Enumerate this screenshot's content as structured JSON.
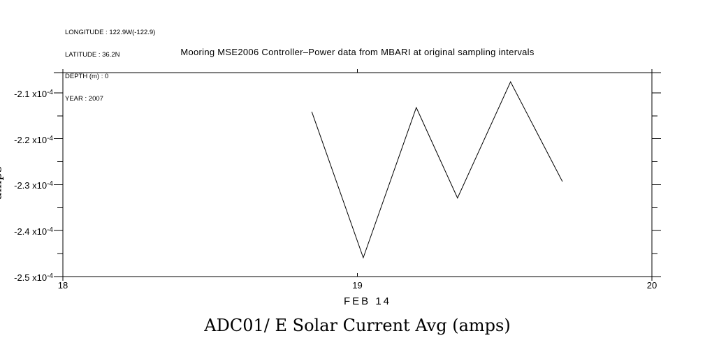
{
  "page": {
    "background": "#ffffff",
    "foreground": "#000000"
  },
  "info_block": {
    "lines": [
      "LONGITUDE : 122.9W(-122.9)",
      "LATITUDE : 36.2N",
      "DEPTH (m) : 0",
      "YEAR : 2007"
    ]
  },
  "title": "Mooring MSE2006 Controller–Power data from MBARI at original sampling intervals",
  "x_axis": {
    "label": "FEB 14",
    "tick_labels": [
      "18",
      "19",
      "20"
    ]
  },
  "y_axis": {
    "clipped_label": "amps",
    "tick_labels": [
      {
        "text": "-2.1 x10",
        "sup": "-4"
      },
      {
        "text": "-2.2 x10",
        "sup": "-4"
      },
      {
        "text": "-2.3 x10",
        "sup": "-4"
      },
      {
        "text": "-2.4 x10",
        "sup": "-4"
      },
      {
        "text": "-2.5 x10",
        "sup": "-4"
      }
    ]
  },
  "footer_title": "ADC01/ E Solar Current Avg (amps)",
  "chart_data": {
    "type": "line",
    "title": "Mooring MSE2006 Controller–Power data from MBARI at original sampling intervals",
    "xlabel": "FEB 14",
    "ylabel": "amps",
    "x": [
      18.845,
      19.02,
      19.2,
      19.34,
      19.52,
      19.696
    ],
    "y": [
      -0.0002141,
      -0.0002459,
      -0.0002132,
      -0.0002329,
      -0.0002076,
      -0.0002293
    ],
    "xlim": [
      18,
      20
    ],
    "ylim": [
      -0.00025,
      -0.0002056
    ],
    "x_ticks": [
      18,
      19,
      20
    ],
    "y_ticks_major": [
      -0.00021,
      -0.00022,
      -0.00023,
      -0.00024,
      -0.00025
    ],
    "y_ticks_minor": [
      -0.000215,
      -0.000225,
      -0.000235,
      -0.000245
    ],
    "line_color": "#000000",
    "grid": false,
    "legend": "none"
  }
}
